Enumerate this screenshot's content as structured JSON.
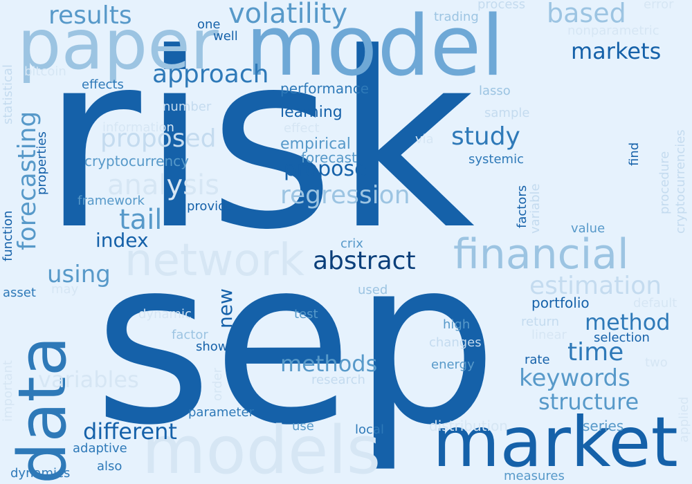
{
  "word_cloud": {
    "words": [
      {
        "text": "risk",
        "color": "#1561a9"
      },
      {
        "text": "sep",
        "color": "#1561a9"
      },
      {
        "text": "model",
        "color": "#6ea8d6"
      },
      {
        "text": "paper",
        "color": "#9cc4e2"
      },
      {
        "text": "market",
        "color": "#1561a9"
      },
      {
        "text": "models",
        "color": "#d6e6f4"
      },
      {
        "text": "data",
        "color": "#2e79b8"
      },
      {
        "text": "financial",
        "color": "#9cc4e2"
      },
      {
        "text": "network",
        "color": "#d6e6f4"
      },
      {
        "text": "volatility",
        "color": "#5799c9"
      },
      {
        "text": "results",
        "color": "#5799c9"
      },
      {
        "text": "based",
        "color": "#9cc4e2"
      },
      {
        "text": "approach",
        "color": "#2e79b8"
      },
      {
        "text": "markets",
        "color": "#1561a9"
      },
      {
        "text": "abstract",
        "color": "#0b3f7a"
      },
      {
        "text": "regression",
        "color": "#9cc4e2"
      },
      {
        "text": "proposed",
        "color": "#c4dbef"
      },
      {
        "text": "analysis",
        "color": "#d6e6f4"
      },
      {
        "text": "forecasting",
        "color": "#5799c9"
      },
      {
        "text": "study",
        "color": "#2e79b8"
      },
      {
        "text": "propose",
        "color": "#1561a9"
      },
      {
        "text": "tail",
        "color": "#5799c9"
      },
      {
        "text": "index",
        "color": "#1561a9"
      },
      {
        "text": "estimation",
        "color": "#c4dbef"
      },
      {
        "text": "method",
        "color": "#2e79b8"
      },
      {
        "text": "time",
        "color": "#2e79b8"
      },
      {
        "text": "keywords",
        "color": "#5799c9"
      },
      {
        "text": "methods",
        "color": "#5799c9"
      },
      {
        "text": "variables",
        "color": "#d6e6f4"
      },
      {
        "text": "structure",
        "color": "#5799c9"
      },
      {
        "text": "different",
        "color": "#1561a9"
      },
      {
        "text": "using",
        "color": "#5799c9"
      },
      {
        "text": "new",
        "color": "#1561a9"
      },
      {
        "text": "portfolio",
        "color": "#1561a9"
      },
      {
        "text": "performance",
        "color": "#2e79b8"
      },
      {
        "text": "learning",
        "color": "#1561a9"
      },
      {
        "text": "empirical",
        "color": "#5799c9"
      },
      {
        "text": "forecast",
        "color": "#5799c9"
      },
      {
        "text": "cryptocurrency",
        "color": "#5799c9"
      },
      {
        "text": "effects",
        "color": "#2e79b8"
      },
      {
        "text": "one",
        "color": "#1561a9"
      },
      {
        "text": "well",
        "color": "#1561a9"
      },
      {
        "text": "trading",
        "color": "#9cc4e2"
      },
      {
        "text": "process",
        "color": "#c4dbef"
      },
      {
        "text": "error",
        "color": "#d6e6f4"
      },
      {
        "text": "nonparametric",
        "color": "#d6e6f4"
      },
      {
        "text": "bitcoin",
        "color": "#d6e6f4"
      },
      {
        "text": "lasso",
        "color": "#9cc4e2"
      },
      {
        "text": "sample",
        "color": "#c4dbef"
      },
      {
        "text": "number",
        "color": "#c4dbef"
      },
      {
        "text": "information",
        "color": "#d6e6f4"
      },
      {
        "text": "effect",
        "color": "#d6e6f4"
      },
      {
        "text": "via",
        "color": "#d6e6f4"
      },
      {
        "text": "systemic",
        "color": "#2e79b8"
      },
      {
        "text": "framework",
        "color": "#5799c9"
      },
      {
        "text": "provide",
        "color": "#1561a9"
      },
      {
        "text": "crix",
        "color": "#5799c9"
      },
      {
        "text": "value",
        "color": "#5799c9"
      },
      {
        "text": "statistical",
        "color": "#c4dbef"
      },
      {
        "text": "properties",
        "color": "#1561a9"
      },
      {
        "text": "function",
        "color": "#1561a9"
      },
      {
        "text": "asset",
        "color": "#2e79b8"
      },
      {
        "text": "may",
        "color": "#d6e6f4"
      },
      {
        "text": "dynamic",
        "color": "#d6e6f4"
      },
      {
        "text": "test",
        "color": "#5799c9"
      },
      {
        "text": "used",
        "color": "#9cc4e2"
      },
      {
        "text": "high",
        "color": "#5799c9"
      },
      {
        "text": "changes",
        "color": "#c4dbef"
      },
      {
        "text": "return",
        "color": "#c4dbef"
      },
      {
        "text": "linear",
        "color": "#d6e6f4"
      },
      {
        "text": "selection",
        "color": "#1561a9"
      },
      {
        "text": "factor",
        "color": "#9cc4e2"
      },
      {
        "text": "show",
        "color": "#1561a9"
      },
      {
        "text": "rate",
        "color": "#1561a9"
      },
      {
        "text": "energy",
        "color": "#5799c9"
      },
      {
        "text": "two",
        "color": "#d6e6f4"
      },
      {
        "text": "research",
        "color": "#c4dbef"
      },
      {
        "text": "parameter",
        "color": "#2e79b8"
      },
      {
        "text": "use",
        "color": "#5799c9"
      },
      {
        "text": "local",
        "color": "#2e79b8"
      },
      {
        "text": "distribution",
        "color": "#d6e6f4"
      },
      {
        "text": "series",
        "color": "#5799c9"
      },
      {
        "text": "adaptive",
        "color": "#2e79b8"
      },
      {
        "text": "also",
        "color": "#2e79b8"
      },
      {
        "text": "dynamics",
        "color": "#2e79b8"
      },
      {
        "text": "measures",
        "color": "#5799c9"
      },
      {
        "text": "important",
        "color": "#d6e6f4"
      },
      {
        "text": "order",
        "color": "#d6e6f4"
      },
      {
        "text": "factors",
        "color": "#1561a9"
      },
      {
        "text": "variable",
        "color": "#c4dbef"
      },
      {
        "text": "find",
        "color": "#1561a9"
      },
      {
        "text": "procedure",
        "color": "#c4dbef"
      },
      {
        "text": "cryptocurrencies",
        "color": "#c4dbef"
      },
      {
        "text": "applied",
        "color": "#d6e6f4"
      },
      {
        "text": "default",
        "color": "#d6e6f4"
      }
    ]
  }
}
